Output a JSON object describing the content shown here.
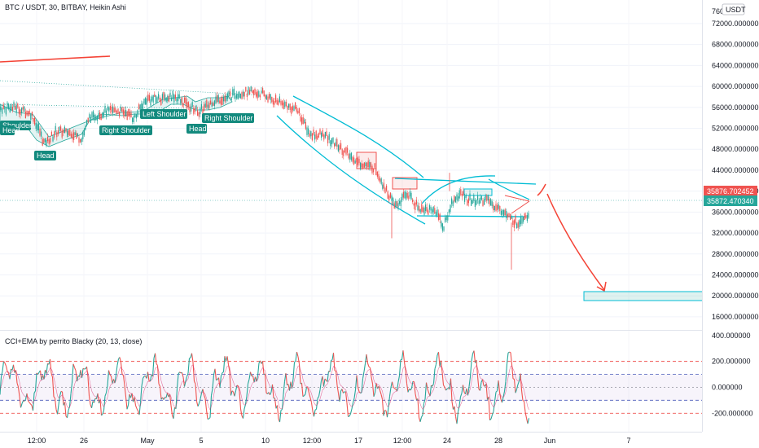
{
  "header": {
    "symbol_title": "BTC / USDT, 30, BITBAY, Heikin Ashi",
    "currency_badge": "USDT"
  },
  "indicator": {
    "title": "CCI+EMA by perrito Blacky (20, 13, close)"
  },
  "colors": {
    "bull": "#26a69a",
    "bear": "#ef5350",
    "channel": "#00bcd4",
    "arrow": "#f44336",
    "pattern_label_bg": "#138a7e",
    "last_price_red": "#ef5350",
    "last_price_green": "#26a69a"
  },
  "price_axis": {
    "top_partial": "760",
    "labels": [
      "72000.000000",
      "68000.000000",
      "64000.000000",
      "60000.000000",
      "56000.000000",
      "52000.000000",
      "48000.000000",
      "44000.000000",
      "40000.000000",
      "36000.000000",
      "32000.000000",
      "28000.000000",
      "24000.000000",
      "20000.000000",
      "16000.000000"
    ]
  },
  "price_tags": {
    "red": "35876.702452",
    "green": "35872.470340"
  },
  "cci_axis": {
    "labels": [
      "400.000000",
      "200.000000",
      "0.000000",
      "-200.000000"
    ]
  },
  "time_axis": {
    "labels": [
      "12:00",
      "26",
      "May",
      "5",
      "10",
      "12:00",
      "17",
      "12:00",
      "24",
      "28",
      "Jun",
      "7"
    ]
  },
  "pattern_labels": [
    "Shoulder",
    "Head",
    "Head",
    "Right Shoulder",
    "Left Shoulder",
    "Head",
    "Right Shoulder"
  ],
  "chart_data": {
    "type": "candlestick",
    "title": "BTC / USDT, 30, BITBAY, Heikin Ashi",
    "price_path": [
      [
        0,
        55800
      ],
      [
        20,
        56000
      ],
      [
        40,
        54500
      ],
      [
        55,
        49000
      ],
      [
        70,
        51500
      ],
      [
        90,
        51000
      ],
      [
        100,
        50000
      ],
      [
        110,
        54000
      ],
      [
        125,
        55000
      ],
      [
        140,
        55500
      ],
      [
        155,
        55000
      ],
      [
        165,
        54000
      ],
      [
        180,
        57500
      ],
      [
        200,
        57800
      ],
      [
        215,
        58200
      ],
      [
        230,
        56500
      ],
      [
        245,
        55000
      ],
      [
        260,
        57000
      ],
      [
        280,
        58000
      ],
      [
        300,
        58800
      ],
      [
        320,
        58600
      ],
      [
        335,
        57500
      ],
      [
        350,
        56500
      ],
      [
        365,
        55500
      ],
      [
        380,
        51000
      ],
      [
        400,
        50500
      ],
      [
        420,
        48000
      ],
      [
        440,
        45500
      ],
      [
        460,
        44500
      ],
      [
        475,
        40000
      ],
      [
        485,
        37000
      ],
      [
        500,
        39500
      ],
      [
        510,
        37500
      ],
      [
        520,
        36500
      ],
      [
        535,
        36500
      ],
      [
        545,
        33000
      ],
      [
        555,
        38000
      ],
      [
        565,
        39500
      ],
      [
        580,
        38000
      ],
      [
        595,
        38500
      ],
      [
        605,
        37500
      ],
      [
        615,
        36500
      ],
      [
        625,
        35000
      ],
      [
        635,
        33800
      ],
      [
        645,
        35500
      ],
      [
        650,
        35870
      ]
    ],
    "cci_overbought": 200,
    "cci_upper": 100,
    "cci_lower": -100,
    "cci_oversold": -200,
    "y_range": [
      13500,
      76500
    ],
    "cci_range": [
      -330,
      430
    ]
  }
}
